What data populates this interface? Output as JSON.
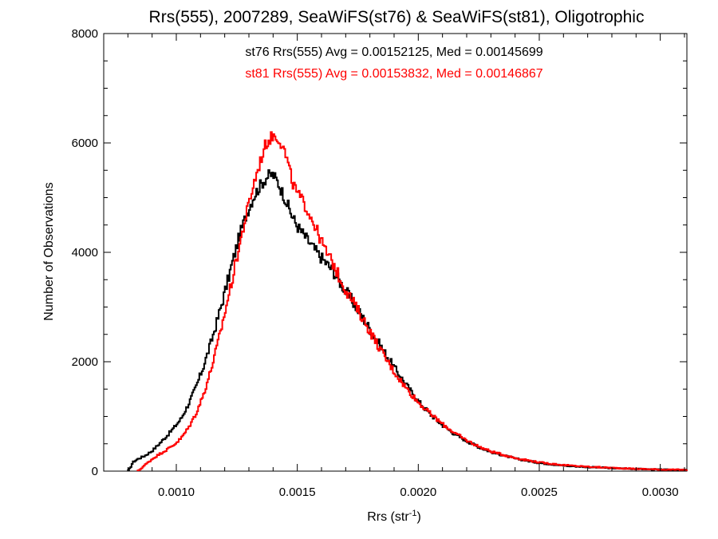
{
  "chart_data": {
    "type": "line",
    "step": true,
    "title": "Rrs(555), 2007289, SeaWiFS(st76) & SeaWiFS(st81), Oligotrophic",
    "xlabel": {
      "main": "Rrs (str",
      "sup": "-1",
      "close": ")"
    },
    "ylabel": "Number of Observations",
    "xlim": [
      0.0007,
      0.00311
    ],
    "ylim": [
      0,
      8000
    ],
    "x_ticks": [
      {
        "value": 0.001,
        "label": "0.0010"
      },
      {
        "value": 0.0015,
        "label": "0.0015"
      },
      {
        "value": 0.002,
        "label": "0.0020"
      },
      {
        "value": 0.0025,
        "label": "0.0025"
      },
      {
        "value": 0.003,
        "label": "0.0030"
      }
    ],
    "y_ticks": [
      {
        "value": 0,
        "label": "0"
      },
      {
        "value": 2000,
        "label": "2000"
      },
      {
        "value": 4000,
        "label": "4000"
      },
      {
        "value": 6000,
        "label": "6000"
      },
      {
        "value": 8000,
        "label": "8000"
      }
    ],
    "annotations": [
      {
        "text": "st76 Rrs(555) Avg = 0.00152125, Med = 0.00145699",
        "color": "#000000"
      },
      {
        "text": "st81 Rrs(555) Avg = 0.00153832, Med = 0.00146867",
        "color": "#ff0000"
      }
    ],
    "series": [
      {
        "id": "st76",
        "color": "#000000",
        "points": [
          [
            0.0008,
            0
          ],
          [
            0.00081,
            60
          ],
          [
            0.00082,
            160
          ],
          [
            0.00084,
            220
          ],
          [
            0.00087,
            280
          ],
          [
            0.0009,
            370
          ],
          [
            0.00093,
            500
          ],
          [
            0.00096,
            640
          ],
          [
            0.00099,
            790
          ],
          [
            0.00102,
            960
          ],
          [
            0.00105,
            1220
          ],
          [
            0.00108,
            1520
          ],
          [
            0.00111,
            1880
          ],
          [
            0.00114,
            2300
          ],
          [
            0.00117,
            2760
          ],
          [
            0.0012,
            3260
          ],
          [
            0.00123,
            3780
          ],
          [
            0.00126,
            4280
          ],
          [
            0.00129,
            4700
          ],
          [
            0.00132,
            5020
          ],
          [
            0.00135,
            5240
          ],
          [
            0.00138,
            5400
          ],
          [
            0.0014,
            5420
          ],
          [
            0.00142,
            5280
          ],
          [
            0.00145,
            4980
          ],
          [
            0.00148,
            4650
          ],
          [
            0.0015,
            4480
          ],
          [
            0.00153,
            4300
          ],
          [
            0.00156,
            4120
          ],
          [
            0.00159,
            3950
          ],
          [
            0.00162,
            3800
          ],
          [
            0.00165,
            3650
          ],
          [
            0.00167,
            3500
          ],
          [
            0.0017,
            3300
          ],
          [
            0.00175,
            2950
          ],
          [
            0.0018,
            2600
          ],
          [
            0.00185,
            2250
          ],
          [
            0.0019,
            1900
          ],
          [
            0.00195,
            1580
          ],
          [
            0.002,
            1280
          ],
          [
            0.00205,
            1040
          ],
          [
            0.0021,
            840
          ],
          [
            0.00215,
            680
          ],
          [
            0.0022,
            550
          ],
          [
            0.00225,
            440
          ],
          [
            0.0023,
            350
          ],
          [
            0.0024,
            230
          ],
          [
            0.0025,
            150
          ],
          [
            0.0026,
            100
          ],
          [
            0.0027,
            75
          ],
          [
            0.0028,
            55
          ],
          [
            0.0029,
            40
          ],
          [
            0.003,
            28
          ],
          [
            0.00311,
            20
          ]
        ]
      },
      {
        "id": "st81",
        "color": "#ff0000",
        "points": [
          [
            0.00084,
            0
          ],
          [
            0.00085,
            30
          ],
          [
            0.00087,
            110
          ],
          [
            0.0009,
            220
          ],
          [
            0.00093,
            310
          ],
          [
            0.00096,
            390
          ],
          [
            0.00099,
            480
          ],
          [
            0.00102,
            600
          ],
          [
            0.00105,
            790
          ],
          [
            0.00108,
            1040
          ],
          [
            0.00111,
            1370
          ],
          [
            0.00114,
            1800
          ],
          [
            0.00117,
            2300
          ],
          [
            0.0012,
            2880
          ],
          [
            0.00123,
            3480
          ],
          [
            0.00126,
            4100
          ],
          [
            0.00129,
            4700
          ],
          [
            0.00132,
            5250
          ],
          [
            0.00135,
            5700
          ],
          [
            0.00137,
            5980
          ],
          [
            0.0014,
            6140
          ],
          [
            0.00142,
            6100
          ],
          [
            0.00144,
            5950
          ],
          [
            0.00146,
            5650
          ],
          [
            0.00148,
            5280
          ],
          [
            0.0015,
            5080
          ],
          [
            0.00153,
            4880
          ],
          [
            0.00156,
            4620
          ],
          [
            0.00159,
            4300
          ],
          [
            0.00162,
            4000
          ],
          [
            0.00165,
            3780
          ],
          [
            0.00167,
            3580
          ],
          [
            0.0017,
            3320
          ],
          [
            0.00175,
            2950
          ],
          [
            0.0018,
            2560
          ],
          [
            0.00185,
            2170
          ],
          [
            0.0019,
            1820
          ],
          [
            0.00195,
            1520
          ],
          [
            0.002,
            1260
          ],
          [
            0.00205,
            1050
          ],
          [
            0.0021,
            860
          ],
          [
            0.00215,
            700
          ],
          [
            0.0022,
            560
          ],
          [
            0.00225,
            450
          ],
          [
            0.0023,
            360
          ],
          [
            0.0024,
            240
          ],
          [
            0.0025,
            160
          ],
          [
            0.0026,
            110
          ],
          [
            0.0027,
            80
          ],
          [
            0.0028,
            60
          ],
          [
            0.0029,
            42
          ],
          [
            0.003,
            30
          ],
          [
            0.00311,
            22
          ]
        ]
      }
    ]
  }
}
